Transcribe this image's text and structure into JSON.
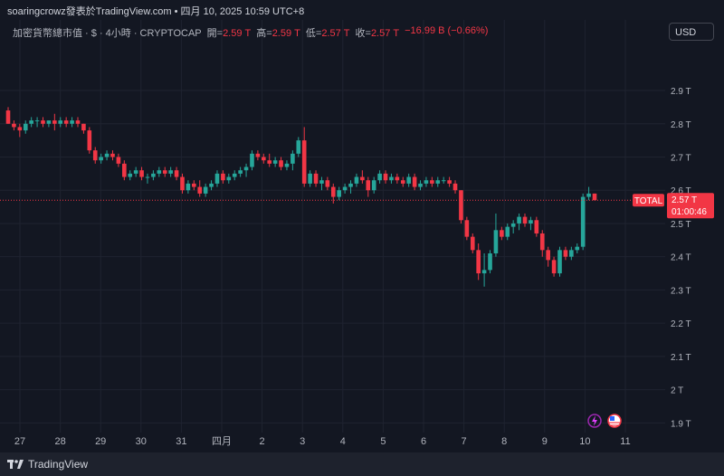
{
  "header": {
    "text": "soaringcrowz發表於TradingView.com • 四月 10, 2025 10:59 UTC+8"
  },
  "legend": {
    "symbol": "加密貨幣總市值 · $ · 4小時 · CRYPTOCAP",
    "open_label": "開=",
    "open": "2.59 T",
    "high_label": "高=",
    "high": "2.59 T",
    "low_label": "低=",
    "low": "2.57 T",
    "close_label": "收=",
    "close": "2.57 T",
    "change": "−16.99 B (−0.66%)"
  },
  "currency_button": "USD",
  "price_tag": {
    "name": "TOTAL",
    "value": "2.57 T",
    "countdown": "01:00:46",
    "color": "#f23645"
  },
  "footer": {
    "brand": "TradingView"
  },
  "colors": {
    "up": "#26a69a",
    "down": "#f23645",
    "background": "#131722",
    "grid": "#1f2330"
  },
  "icons": [
    "lightning-icon",
    "us-flag-icon"
  ],
  "chart_data": {
    "type": "candlestick",
    "y_unit": "T",
    "ylim": [
      1.89,
      2.96
    ],
    "y_ticks": [
      "1.9 T",
      "2 T",
      "2.1 T",
      "2.2 T",
      "2.3 T",
      "2.4 T",
      "2.5 T",
      "2.6 T",
      "2.7 T",
      "2.8 T",
      "2.9 T"
    ],
    "y_tick_values": [
      1.9,
      2.0,
      2.1,
      2.2,
      2.3,
      2.4,
      2.5,
      2.6,
      2.7,
      2.8,
      2.9
    ],
    "x_ticks": [
      "27",
      "28",
      "29",
      "30",
      "31",
      "四月",
      "2",
      "3",
      "4",
      "5",
      "6",
      "7",
      "8",
      "9",
      "10",
      "11"
    ],
    "current_price": 2.57,
    "candles": [
      [
        2.84,
        2.85,
        2.8,
        2.8
      ],
      [
        2.8,
        2.81,
        2.78,
        2.79
      ],
      [
        2.79,
        2.8,
        2.76,
        2.78
      ],
      [
        2.78,
        2.81,
        2.77,
        2.8
      ],
      [
        2.8,
        2.82,
        2.79,
        2.81
      ],
      [
        2.81,
        2.82,
        2.79,
        2.81
      ],
      [
        2.81,
        2.82,
        2.79,
        2.8
      ],
      [
        2.8,
        2.81,
        2.79,
        2.81
      ],
      [
        2.81,
        2.83,
        2.78,
        2.8
      ],
      [
        2.8,
        2.82,
        2.79,
        2.81
      ],
      [
        2.81,
        2.82,
        2.79,
        2.8
      ],
      [
        2.8,
        2.82,
        2.79,
        2.81
      ],
      [
        2.81,
        2.82,
        2.79,
        2.8
      ],
      [
        2.8,
        2.8,
        2.77,
        2.78
      ],
      [
        2.78,
        2.79,
        2.71,
        2.72
      ],
      [
        2.72,
        2.73,
        2.68,
        2.69
      ],
      [
        2.69,
        2.71,
        2.68,
        2.7
      ],
      [
        2.7,
        2.72,
        2.69,
        2.71
      ],
      [
        2.71,
        2.72,
        2.69,
        2.7
      ],
      [
        2.7,
        2.71,
        2.67,
        2.68
      ],
      [
        2.68,
        2.69,
        2.63,
        2.64
      ],
      [
        2.64,
        2.66,
        2.63,
        2.65
      ],
      [
        2.65,
        2.67,
        2.64,
        2.66
      ],
      [
        2.66,
        2.67,
        2.63,
        2.64
      ],
      [
        2.64,
        2.65,
        2.62,
        2.64
      ],
      [
        2.64,
        2.66,
        2.63,
        2.65
      ],
      [
        2.65,
        2.67,
        2.64,
        2.66
      ],
      [
        2.66,
        2.67,
        2.64,
        2.65
      ],
      [
        2.65,
        2.67,
        2.64,
        2.66
      ],
      [
        2.66,
        2.67,
        2.63,
        2.64
      ],
      [
        2.64,
        2.65,
        2.59,
        2.6
      ],
      [
        2.6,
        2.63,
        2.59,
        2.62
      ],
      [
        2.62,
        2.63,
        2.6,
        2.61
      ],
      [
        2.61,
        2.63,
        2.58,
        2.59
      ],
      [
        2.59,
        2.62,
        2.58,
        2.61
      ],
      [
        2.61,
        2.63,
        2.6,
        2.62
      ],
      [
        2.62,
        2.66,
        2.61,
        2.65
      ],
      [
        2.65,
        2.66,
        2.62,
        2.63
      ],
      [
        2.63,
        2.65,
        2.62,
        2.64
      ],
      [
        2.64,
        2.66,
        2.63,
        2.65
      ],
      [
        2.65,
        2.67,
        2.64,
        2.66
      ],
      [
        2.66,
        2.68,
        2.64,
        2.67
      ],
      [
        2.67,
        2.72,
        2.66,
        2.71
      ],
      [
        2.71,
        2.72,
        2.69,
        2.7
      ],
      [
        2.7,
        2.71,
        2.68,
        2.69
      ],
      [
        2.69,
        2.71,
        2.67,
        2.68
      ],
      [
        2.68,
        2.7,
        2.67,
        2.69
      ],
      [
        2.69,
        2.7,
        2.66,
        2.67
      ],
      [
        2.67,
        2.69,
        2.66,
        2.68
      ],
      [
        2.68,
        2.72,
        2.66,
        2.71
      ],
      [
        2.71,
        2.76,
        2.7,
        2.75
      ],
      [
        2.75,
        2.79,
        2.61,
        2.62
      ],
      [
        2.62,
        2.66,
        2.61,
        2.65
      ],
      [
        2.65,
        2.66,
        2.61,
        2.62
      ],
      [
        2.62,
        2.64,
        2.6,
        2.63
      ],
      [
        2.63,
        2.64,
        2.6,
        2.61
      ],
      [
        2.61,
        2.62,
        2.56,
        2.58
      ],
      [
        2.58,
        2.61,
        2.57,
        2.6
      ],
      [
        2.6,
        2.62,
        2.59,
        2.61
      ],
      [
        2.61,
        2.63,
        2.59,
        2.62
      ],
      [
        2.62,
        2.65,
        2.61,
        2.64
      ],
      [
        2.64,
        2.66,
        2.62,
        2.63
      ],
      [
        2.63,
        2.64,
        2.58,
        2.6
      ],
      [
        2.6,
        2.64,
        2.59,
        2.63
      ],
      [
        2.63,
        2.66,
        2.62,
        2.65
      ],
      [
        2.65,
        2.66,
        2.62,
        2.63
      ],
      [
        2.63,
        2.65,
        2.62,
        2.64
      ],
      [
        2.64,
        2.65,
        2.62,
        2.63
      ],
      [
        2.63,
        2.64,
        2.61,
        2.62
      ],
      [
        2.62,
        2.65,
        2.61,
        2.64
      ],
      [
        2.64,
        2.65,
        2.6,
        2.61
      ],
      [
        2.61,
        2.63,
        2.6,
        2.62
      ],
      [
        2.62,
        2.64,
        2.61,
        2.63
      ],
      [
        2.63,
        2.64,
        2.61,
        2.62
      ],
      [
        2.62,
        2.64,
        2.61,
        2.63
      ],
      [
        2.63,
        2.64,
        2.62,
        2.63
      ],
      [
        2.63,
        2.64,
        2.61,
        2.62
      ],
      [
        2.62,
        2.63,
        2.59,
        2.6
      ],
      [
        2.6,
        2.6,
        2.5,
        2.51
      ],
      [
        2.51,
        2.52,
        2.45,
        2.46
      ],
      [
        2.46,
        2.47,
        2.41,
        2.42
      ],
      [
        2.42,
        2.44,
        2.33,
        2.35
      ],
      [
        2.35,
        2.41,
        2.31,
        2.36
      ],
      [
        2.36,
        2.42,
        2.35,
        2.41
      ],
      [
        2.41,
        2.53,
        2.4,
        2.48
      ],
      [
        2.48,
        2.49,
        2.45,
        2.46
      ],
      [
        2.46,
        2.5,
        2.45,
        2.49
      ],
      [
        2.49,
        2.51,
        2.47,
        2.5
      ],
      [
        2.5,
        2.53,
        2.48,
        2.52
      ],
      [
        2.52,
        2.53,
        2.49,
        2.5
      ],
      [
        2.5,
        2.52,
        2.48,
        2.51
      ],
      [
        2.51,
        2.52,
        2.46,
        2.47
      ],
      [
        2.47,
        2.48,
        2.4,
        2.42
      ],
      [
        2.42,
        2.43,
        2.37,
        2.39
      ],
      [
        2.39,
        2.4,
        2.34,
        2.35
      ],
      [
        2.35,
        2.43,
        2.34,
        2.42
      ],
      [
        2.42,
        2.43,
        2.39,
        2.4
      ],
      [
        2.4,
        2.43,
        2.39,
        2.42
      ],
      [
        2.42,
        2.44,
        2.41,
        2.43
      ],
      [
        2.43,
        2.59,
        2.42,
        2.58
      ],
      [
        2.58,
        2.61,
        2.57,
        2.59
      ],
      [
        2.59,
        2.59,
        2.57,
        2.57
      ]
    ]
  }
}
